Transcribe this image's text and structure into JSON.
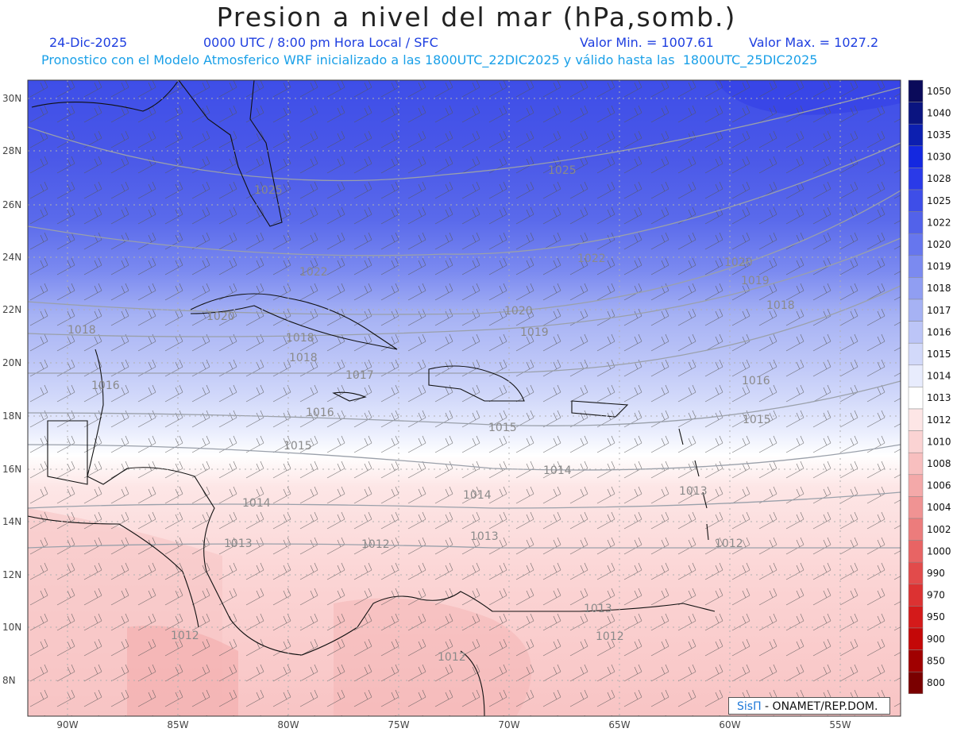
{
  "header": {
    "title": "Presion a nivel del mar (hPa,somb.)",
    "date": "24-Dic-2025",
    "time": "0000 UTC / 8:00 pm Hora Local / SFC",
    "min": "Valor Min. = 1007.61",
    "max": "Valor Max. = 1027.2",
    "subtitle": "Pronostico con el Modelo Atmosferico WRF inicializado a las 1800UTC_22DIC2025 y válido hasta las  1800UTC_25DIC2025"
  },
  "colorbar": {
    "levels": [
      "1050",
      "1040",
      "1035",
      "1030",
      "1028",
      "1025",
      "1022",
      "1020",
      "1019",
      "1018",
      "1017",
      "1016",
      "1015",
      "1014",
      "1013",
      "1012",
      "1010",
      "1008",
      "1006",
      "1004",
      "1002",
      "1000",
      "990",
      "970",
      "950",
      "900",
      "850",
      "800"
    ],
    "colors": [
      "#0a0a5a",
      "#0a1480",
      "#0c1fb0",
      "#1428e0",
      "#2a3ae8",
      "#3e4ee8",
      "#5262ea",
      "#6676ee",
      "#7b8af0",
      "#909ef2",
      "#a6b2f4",
      "#bcc5f7",
      "#d2d9fa",
      "#e8ecfd",
      "#ffffff",
      "#fde6e6",
      "#fbd3d3",
      "#f8bfbf",
      "#f4a9a9",
      "#f09393",
      "#ec7c7c",
      "#e86464",
      "#e24b4b",
      "#dc3232",
      "#d41a1a",
      "#c40808",
      "#a00000",
      "#7a0000"
    ]
  },
  "axes": {
    "lon_labels": [
      "90W",
      "85W",
      "80W",
      "75W",
      "70W",
      "65W",
      "60W",
      "55W"
    ],
    "lat_labels": [
      "30N",
      "28N",
      "26N",
      "24N",
      "22N",
      "20N",
      "18N",
      "16N",
      "14N",
      "12N",
      "10N",
      "8N"
    ]
  },
  "contours": [
    {
      "label": "1025"
    },
    {
      "label": "1025"
    },
    {
      "label": "1022"
    },
    {
      "label": "1022"
    },
    {
      "label": "1020"
    },
    {
      "label": "1020"
    },
    {
      "label": "1020"
    },
    {
      "label": "1019"
    },
    {
      "label": "1019"
    },
    {
      "label": "1018"
    },
    {
      "label": "1018"
    },
    {
      "label": "1018"
    },
    {
      "label": "1018"
    },
    {
      "label": "1017"
    },
    {
      "label": "1016"
    },
    {
      "label": "1016"
    },
    {
      "label": "1016"
    },
    {
      "label": "1015"
    },
    {
      "label": "1015"
    },
    {
      "label": "1015"
    },
    {
      "label": "1014"
    },
    {
      "label": "1014"
    },
    {
      "label": "1014"
    },
    {
      "label": "1013"
    },
    {
      "label": "1013"
    },
    {
      "label": "1013"
    },
    {
      "label": "1012"
    },
    {
      "label": "1012"
    },
    {
      "label": "1013"
    },
    {
      "label": "1012"
    },
    {
      "label": "1012"
    },
    {
      "label": "1012"
    }
  ],
  "credit": {
    "logo": "SisΠ",
    "text": " - ONAMET/REP.DOM."
  },
  "colors": {
    "title_text": "#222222",
    "subtitle_blue": "#1f3fe0",
    "subtitle_cyan": "#1aa0e8"
  }
}
